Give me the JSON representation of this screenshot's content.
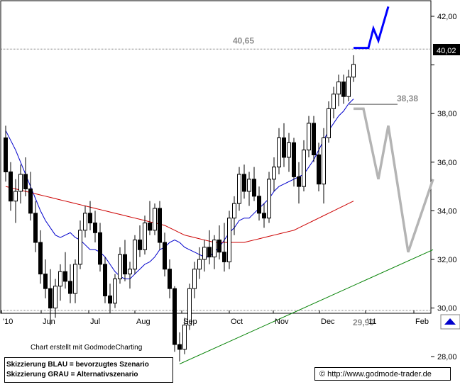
{
  "chart_data": {
    "type": "candlestick",
    "x_tick_labels": [
      "'10",
      "Jun",
      "Jul",
      "Aug",
      "Sep",
      "Oct",
      "Nov",
      "Dec",
      "'11",
      "Feb"
    ],
    "y_tick_labels": [
      "42,00",
      "40,00",
      "38,00",
      "36,00",
      "34,00",
      "32,00",
      "30,00",
      "28,00"
    ],
    "y_ticks": [
      42,
      40,
      38,
      36,
      34,
      32,
      30,
      28
    ],
    "ylim": [
      27.6,
      42.7
    ],
    "last_price_label": "40,02",
    "last_price": 40.02,
    "levels": [
      {
        "value": 40.65,
        "label": "40,65",
        "color": "#8c8c8c"
      },
      {
        "value": 29.9,
        "label": "29,90",
        "color": "#8c8c8c"
      },
      {
        "value": 38.38,
        "label": "38,38",
        "color": "#555555"
      }
    ],
    "ohlc": [
      [
        37.0,
        37.5,
        35.2,
        35.6
      ],
      [
        35.6,
        36.0,
        34.0,
        34.4
      ],
      [
        34.4,
        35.3,
        33.5,
        34.8
      ],
      [
        34.8,
        35.9,
        34.3,
        35.5
      ],
      [
        35.5,
        36.2,
        34.6,
        34.9
      ],
      [
        34.9,
        35.6,
        33.6,
        33.9
      ],
      [
        33.9,
        34.4,
        32.3,
        32.7
      ],
      [
        32.7,
        33.2,
        31.0,
        31.4
      ],
      [
        31.4,
        32.0,
        30.4,
        30.8
      ],
      [
        30.8,
        31.6,
        29.3,
        30.0
      ],
      [
        30.0,
        31.2,
        29.6,
        30.9
      ],
      [
        30.9,
        31.8,
        30.3,
        31.5
      ],
      [
        31.5,
        32.3,
        30.8,
        31.1
      ],
      [
        31.1,
        31.8,
        30.2,
        30.6
      ],
      [
        30.6,
        32.0,
        30.2,
        31.8
      ],
      [
        31.8,
        33.6,
        31.6,
        33.2
      ],
      [
        33.2,
        34.2,
        32.9,
        33.9
      ],
      [
        33.9,
        34.4,
        33.2,
        33.5
      ],
      [
        33.5,
        34.0,
        32.7,
        33.1
      ],
      [
        33.1,
        33.5,
        31.5,
        31.8
      ],
      [
        31.8,
        32.1,
        30.2,
        30.5
      ],
      [
        30.5,
        31.0,
        29.8,
        30.2
      ],
      [
        30.2,
        31.4,
        30.0,
        31.2
      ],
      [
        31.2,
        32.5,
        31.0,
        32.2
      ],
      [
        32.2,
        32.8,
        31.1,
        31.4
      ],
      [
        31.4,
        31.9,
        30.8,
        31.6
      ],
      [
        31.6,
        33.0,
        31.4,
        32.8
      ],
      [
        32.8,
        33.4,
        32.1,
        32.4
      ],
      [
        32.4,
        33.8,
        32.2,
        33.5
      ],
      [
        33.5,
        34.4,
        33.0,
        33.2
      ],
      [
        33.2,
        34.3,
        33.0,
        34.1
      ],
      [
        34.1,
        34.4,
        32.4,
        32.7
      ],
      [
        32.7,
        33.1,
        31.3,
        31.6
      ],
      [
        31.6,
        32.0,
        30.4,
        30.8
      ],
      [
        30.8,
        30.9,
        28.2,
        28.5
      ],
      [
        28.5,
        29.0,
        27.8,
        28.3
      ],
      [
        28.3,
        29.6,
        28.1,
        29.3
      ],
      [
        29.3,
        31.0,
        29.1,
        30.8
      ],
      [
        30.8,
        31.9,
        30.4,
        31.6
      ],
      [
        31.6,
        32.5,
        31.2,
        32.0
      ],
      [
        32.0,
        32.8,
        31.5,
        32.5
      ],
      [
        32.5,
        33.2,
        31.8,
        32.1
      ],
      [
        32.1,
        33.0,
        31.6,
        32.8
      ],
      [
        32.8,
        33.4,
        32.0,
        32.3
      ],
      [
        32.3,
        33.5,
        31.5,
        31.9
      ],
      [
        31.9,
        34.0,
        31.6,
        33.7
      ],
      [
        33.7,
        34.6,
        33.0,
        34.3
      ],
      [
        34.3,
        35.8,
        34.0,
        35.5
      ],
      [
        35.5,
        35.9,
        34.5,
        34.8
      ],
      [
        34.8,
        35.6,
        34.2,
        35.3
      ],
      [
        35.3,
        35.8,
        34.4,
        34.6
      ],
      [
        34.6,
        35.0,
        33.6,
        33.9
      ],
      [
        33.9,
        34.3,
        33.3,
        33.7
      ],
      [
        33.7,
        35.6,
        33.5,
        35.3
      ],
      [
        35.3,
        36.2,
        34.8,
        35.8
      ],
      [
        35.8,
        37.4,
        35.5,
        37.0
      ],
      [
        37.0,
        37.6,
        35.8,
        36.2
      ],
      [
        36.2,
        37.2,
        35.6,
        36.8
      ],
      [
        36.8,
        37.0,
        35.0,
        35.4
      ],
      [
        35.4,
        36.0,
        34.3,
        35.0
      ],
      [
        35.0,
        36.9,
        34.8,
        36.5
      ],
      [
        36.5,
        37.9,
        36.2,
        37.6
      ],
      [
        37.6,
        37.9,
        36.0,
        36.3
      ],
      [
        36.3,
        36.8,
        34.8,
        35.1
      ],
      [
        35.1,
        37.4,
        34.3,
        37.0
      ],
      [
        37.0,
        38.5,
        36.8,
        38.2
      ],
      [
        38.2,
        39.1,
        37.8,
        38.8
      ],
      [
        38.8,
        39.6,
        38.3,
        39.3
      ],
      [
        39.3,
        39.6,
        38.4,
        38.7
      ],
      [
        38.7,
        39.8,
        38.5,
        39.5
      ],
      [
        39.5,
        40.4,
        39.3,
        40.02
      ]
    ],
    "moving_averages": [
      {
        "name": "short",
        "color": "#0000cc",
        "values": [
          37.3,
          36.9,
          36.5,
          36.0,
          35.5,
          35.0,
          34.5,
          34.0,
          33.6,
          33.3,
          33.0,
          32.9,
          33.0,
          33.1,
          32.9,
          32.8,
          32.6,
          32.4,
          32.4,
          32.3,
          32.1,
          31.8,
          31.5,
          31.3,
          31.2,
          31.2,
          31.4,
          31.6,
          31.8,
          31.9,
          32.1,
          32.4,
          32.5,
          32.7,
          32.8,
          32.7,
          32.5,
          32.4,
          32.3,
          32.2,
          32.1,
          32.1,
          32.3,
          32.5,
          32.8,
          33.1,
          33.3,
          33.6,
          33.7,
          33.7,
          33.9,
          34.1,
          34.3,
          34.5,
          34.8,
          35.0,
          35.1,
          35.2,
          35.3,
          35.4,
          35.5,
          35.8,
          36.1,
          36.5,
          36.9,
          37.3,
          37.6,
          37.9,
          38.1,
          38.4,
          38.6
        ]
      },
      {
        "name": "long",
        "color": "#cc0000",
        "values": [
          35.0,
          34.95,
          34.9,
          34.85,
          34.8,
          34.75,
          34.7,
          34.65,
          34.6,
          34.55,
          34.5,
          34.45,
          34.4,
          34.35,
          34.3,
          34.25,
          34.2,
          34.15,
          34.1,
          34.05,
          34.0,
          33.95,
          33.9,
          33.85,
          33.8,
          33.75,
          33.7,
          33.65,
          33.6,
          33.55,
          33.5,
          33.45,
          33.4,
          33.3,
          33.2,
          33.1,
          33.0,
          32.95,
          32.9,
          32.85,
          32.8,
          32.75,
          32.7,
          32.7,
          32.7,
          32.7,
          32.7,
          32.7,
          32.7,
          32.75,
          32.8,
          32.85,
          32.9,
          32.95,
          33.0,
          33.05,
          33.1,
          33.15,
          33.2,
          33.3,
          33.4,
          33.5,
          33.6,
          33.7,
          33.8,
          33.9,
          34.0,
          34.1,
          34.2,
          34.3,
          34.4
        ]
      }
    ],
    "trendline": {
      "color": "#008000",
      "from": {
        "i": 35,
        "value": 27.7
      },
      "to": {
        "i": 86,
        "value": 32.4
      }
    },
    "scenario_blue": {
      "color": "#0000ff",
      "points": [
        [
          70,
          40.7
        ],
        [
          73,
          40.7
        ],
        [
          74,
          41.5
        ],
        [
          75,
          41.0
        ],
        [
          77,
          42.4
        ]
      ]
    },
    "scenario_gray": {
      "color": "#b4b4b4",
      "points": [
        [
          70,
          38.2
        ],
        [
          72,
          38.2
        ],
        [
          75,
          35.3
        ],
        [
          77,
          37.5
        ],
        [
          81,
          32.3
        ],
        [
          86,
          35.3
        ]
      ]
    }
  },
  "footer": {
    "credit": "Chart erstellt mit GodmodeCharting",
    "legend_blue": "Skizzierung BLAU = bevorzugtes Szenario",
    "legend_gray": "Skizzierung GRAU = Alternativszenario",
    "url": "© http://www.godmode-trader.de"
  }
}
